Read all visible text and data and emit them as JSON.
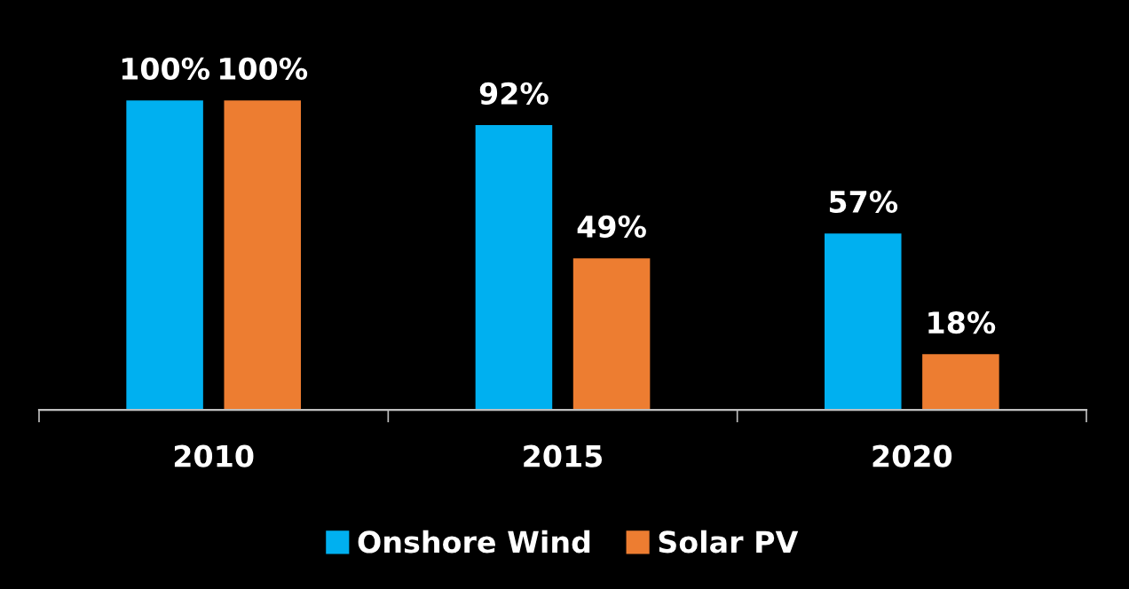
{
  "chart_data": {
    "type": "bar",
    "categories": [
      "2010",
      "2015",
      "2020"
    ],
    "series": [
      {
        "name": "Onshore Wind",
        "color": "#00b0f0",
        "values": [
          100,
          92,
          57
        ],
        "value_labels": [
          "100%",
          "92%",
          "57%"
        ]
      },
      {
        "name": "Solar PV",
        "color": "#ed7d31",
        "values": [
          100,
          49,
          18
        ],
        "value_labels": [
          "100%",
          "49%",
          "18%"
        ]
      }
    ],
    "legend": "bottom",
    "grid": false
  }
}
